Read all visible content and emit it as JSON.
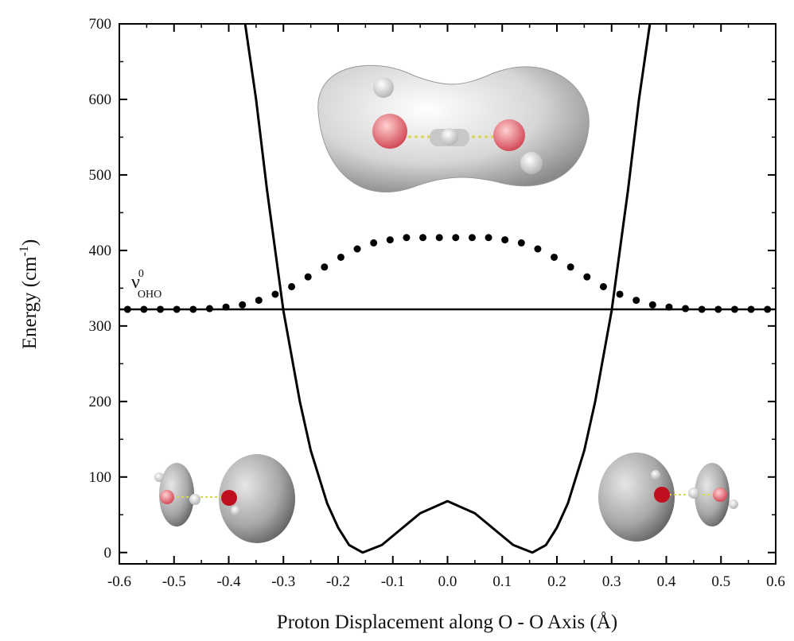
{
  "chart_data": {
    "type": "line",
    "xlabel": "Proton Displacement along O - O Axis (Å)",
    "ylabel": {
      "main": "Energy (cm",
      "sup": "-1",
      "end": ")"
    },
    "annotation": {
      "symbol": "ν",
      "sup": "0",
      "sub": "OHO"
    },
    "xlim": [
      -0.6,
      0.6
    ],
    "ylim": [
      -15,
      700
    ],
    "xticks": [
      -0.6,
      -0.5,
      -0.4,
      -0.3,
      -0.2,
      -0.1,
      {
        "value": 0,
        "label": "0.0"
      },
      0.1,
      0.2,
      0.3,
      0.4,
      0.5,
      0.6
    ],
    "yticks": [
      0,
      100,
      200,
      300,
      400,
      500,
      600,
      700
    ],
    "reference_line": 322,
    "series": [
      {
        "style": "line",
        "color": "#000000",
        "x": [
          -0.37,
          -0.35,
          -0.33,
          -0.3,
          -0.27,
          -0.25,
          -0.22,
          -0.2,
          -0.18,
          -0.155,
          -0.12,
          -0.1,
          -0.05,
          0,
          0.05,
          0.1,
          0.12,
          0.155,
          0.18,
          0.2,
          0.22,
          0.25,
          0.27,
          0.3,
          0.33,
          0.35,
          0.37
        ],
        "values": [
          700,
          600,
          480,
          320,
          200,
          135,
          65,
          33,
          10,
          0,
          10,
          22,
          52,
          68,
          52,
          22,
          10,
          0,
          10,
          33,
          65,
          135,
          200,
          320,
          480,
          600,
          700
        ]
      },
      {
        "style": "dots",
        "color": "#000000",
        "x": [
          -0.585,
          -0.555,
          -0.525,
          -0.495,
          -0.465,
          -0.435,
          -0.405,
          -0.375,
          -0.345,
          -0.315,
          -0.285,
          -0.255,
          -0.225,
          -0.195,
          -0.165,
          -0.135,
          -0.105,
          -0.075,
          -0.045,
          -0.015,
          0.015,
          0.045,
          0.075,
          0.105,
          0.135,
          0.165,
          0.195,
          0.225,
          0.255,
          0.285,
          0.315,
          0.345,
          0.375,
          0.405,
          0.435,
          0.465,
          0.495,
          0.525,
          0.555,
          0.585
        ],
        "values": [
          322,
          322,
          322,
          322,
          322,
          323,
          325,
          328,
          334,
          342,
          352,
          365,
          378,
          391,
          402,
          410,
          414,
          417,
          417,
          417,
          417,
          417,
          417,
          414,
          410,
          402,
          391,
          378,
          365,
          352,
          342,
          334,
          328,
          325,
          323,
          322,
          322,
          322,
          322,
          322
        ]
      }
    ]
  }
}
